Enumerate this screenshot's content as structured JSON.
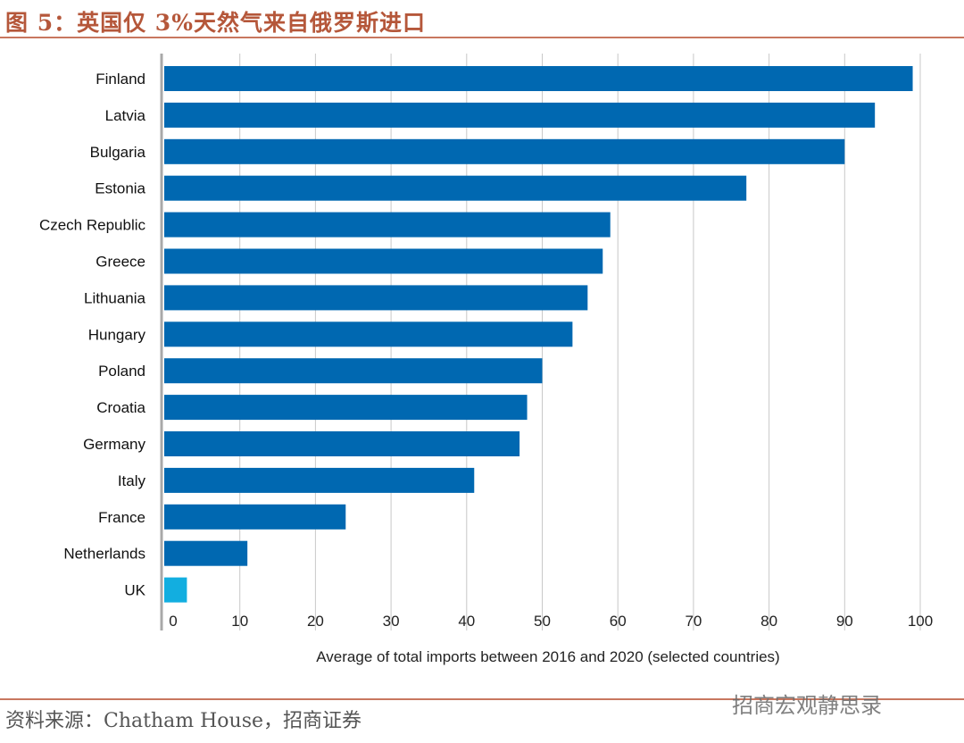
{
  "header": {
    "title": "图 5：英国仅 3%天然气来自俄罗斯进口"
  },
  "footer": {
    "source": "资料来源：Chatham House，招商证券",
    "watermark": "招商宏观静思录"
  },
  "colors": {
    "bar": "#0068b1",
    "highlight": "#12aee0",
    "grid": "#c8c8c8",
    "axis": "#a9a9a9",
    "header": "#b5573a"
  },
  "chart_data": {
    "type": "bar",
    "orientation": "horizontal",
    "categories": [
      "Finland",
      "Latvia",
      "Bulgaria",
      "Estonia",
      "Czech Republic",
      "Greece",
      "Lithuania",
      "Hungary",
      "Poland",
      "Croatia",
      "Germany",
      "Italy",
      "France",
      "Netherlands",
      "UK"
    ],
    "values": [
      99,
      94,
      90,
      77,
      59,
      58,
      56,
      54,
      50,
      48,
      47,
      41,
      24,
      11,
      3
    ],
    "highlight_category": "UK",
    "xlabel": "Average of total imports between 2016 and 2020 (selected countries)",
    "xlim": [
      0,
      100
    ],
    "xticks": [
      0,
      10,
      20,
      30,
      40,
      50,
      60,
      70,
      80,
      90,
      100
    ],
    "grid": "vertical"
  }
}
